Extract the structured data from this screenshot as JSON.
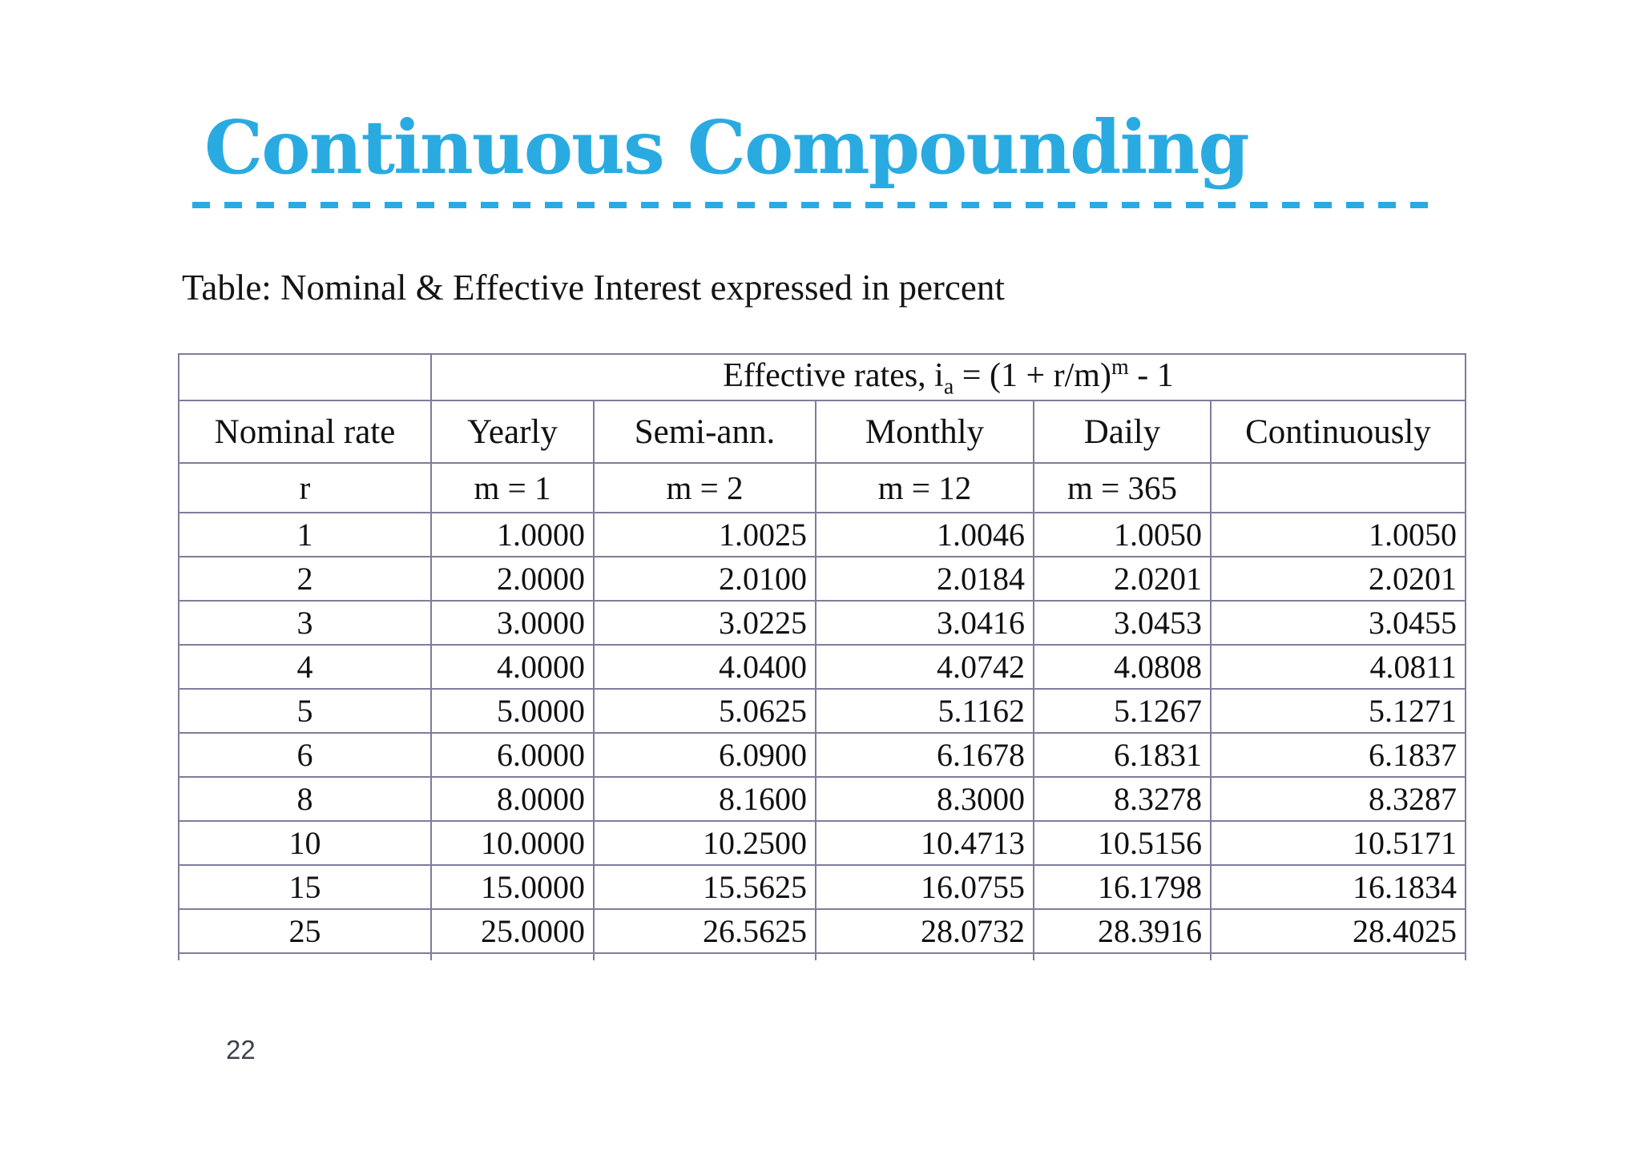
{
  "slide": {
    "title": "Continuous Compounding",
    "caption": "Table: Nominal & Effective Interest expressed in percent",
    "page_number": "22",
    "accent_color": "#29ABE2",
    "table_border_color": "#7d7d9c"
  },
  "table": {
    "formula": {
      "prefix": "Effective rates, i",
      "subscript": "a",
      "middle": " = (1 + r/m)",
      "superscript": "m",
      "suffix": " - 1"
    },
    "columns": [
      "Nominal rate",
      "Yearly",
      "Semi-ann.",
      "Monthly",
      "Daily",
      "Continuously"
    ],
    "subheaders": [
      "r",
      "m = 1",
      "m = 2",
      "m = 12",
      "m = 365",
      ""
    ],
    "rows": [
      {
        "rate": "1",
        "values": [
          "1.0000",
          "1.0025",
          "1.0046",
          "1.0050",
          "1.0050"
        ]
      },
      {
        "rate": "2",
        "values": [
          "2.0000",
          "2.0100",
          "2.0184",
          "2.0201",
          "2.0201"
        ]
      },
      {
        "rate": "3",
        "values": [
          "3.0000",
          "3.0225",
          "3.0416",
          "3.0453",
          "3.0455"
        ]
      },
      {
        "rate": "4",
        "values": [
          "4.0000",
          "4.0400",
          "4.0742",
          "4.0808",
          "4.0811"
        ]
      },
      {
        "rate": "5",
        "values": [
          "5.0000",
          "5.0625",
          "5.1162",
          "5.1267",
          "5.1271"
        ]
      },
      {
        "rate": "6",
        "values": [
          "6.0000",
          "6.0900",
          "6.1678",
          "6.1831",
          "6.1837"
        ]
      },
      {
        "rate": "8",
        "values": [
          "8.0000",
          "8.1600",
          "8.3000",
          "8.3278",
          "8.3287"
        ]
      },
      {
        "rate": "10",
        "values": [
          "10.0000",
          "10.2500",
          "10.4713",
          "10.5156",
          "10.5171"
        ]
      },
      {
        "rate": "15",
        "values": [
          "15.0000",
          "15.5625",
          "16.0755",
          "16.1798",
          "16.1834"
        ]
      },
      {
        "rate": "25",
        "values": [
          "25.0000",
          "26.5625",
          "28.0732",
          "28.3916",
          "28.4025"
        ]
      }
    ]
  }
}
